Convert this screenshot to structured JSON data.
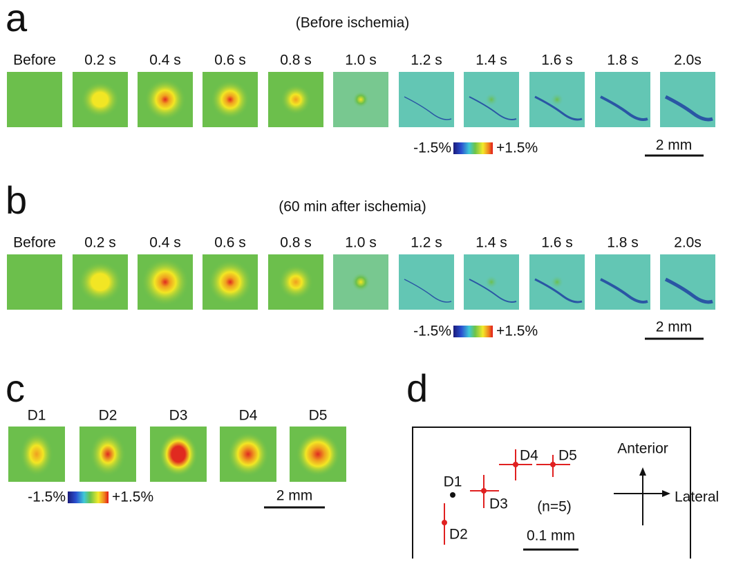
{
  "panel_a": {
    "letter": "a",
    "title": "(Before ischemia)",
    "frames": [
      "Before",
      "0.2 s",
      "0.4 s",
      "0.6 s",
      "0.8 s",
      "1.0 s",
      "1.2 s",
      "1.4 s",
      "1.6 s",
      "1.8 s",
      "2.0s"
    ],
    "colorbar": {
      "min_label": "-1.5%",
      "max_label": "+1.5%"
    },
    "scale_bar": "2 mm"
  },
  "panel_b": {
    "letter": "b",
    "title": "(60 min after ischemia)",
    "frames": [
      "Before",
      "0.2 s",
      "0.4 s",
      "0.6 s",
      "0.8 s",
      "1.0 s",
      "1.2 s",
      "1.4 s",
      "1.6 s",
      "1.8 s",
      "2.0s"
    ],
    "colorbar": {
      "min_label": "-1.5%",
      "max_label": "+1.5%"
    },
    "scale_bar": "2 mm"
  },
  "panel_c": {
    "letter": "c",
    "labels": [
      "D1",
      "D2",
      "D3",
      "D4",
      "D5"
    ],
    "colorbar": {
      "min_label": "-1.5%",
      "max_label": "+1.5%"
    },
    "scale_bar": "2 mm"
  },
  "panel_d": {
    "letter": "d",
    "points": [
      "D1",
      "D2",
      "D3",
      "D4",
      "D5"
    ],
    "n_label": "(n=5)",
    "scale_bar": "0.1 mm",
    "anterior": "Anterior",
    "lateral": "Lateral"
  }
}
